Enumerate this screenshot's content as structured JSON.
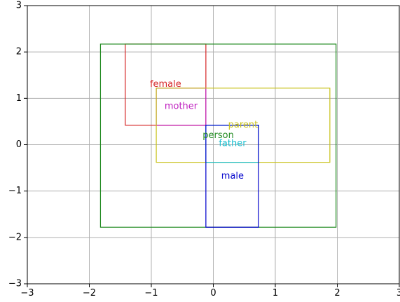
{
  "chart_data": {
    "type": "box-region-plot",
    "xlim": [
      -3,
      3
    ],
    "ylim": [
      -3,
      3
    ],
    "grid": true,
    "x_ticks": [
      {
        "value": -3,
        "label": "−3"
      },
      {
        "value": -2,
        "label": "−2"
      },
      {
        "value": -1,
        "label": "−1"
      },
      {
        "value": 0,
        "label": "0"
      },
      {
        "value": 1,
        "label": "1"
      },
      {
        "value": 2,
        "label": "2"
      },
      {
        "value": 3,
        "label": "3"
      }
    ],
    "y_ticks": [
      {
        "value": -3,
        "label": "−3"
      },
      {
        "value": -2,
        "label": "−2"
      },
      {
        "value": -1,
        "label": "−1"
      },
      {
        "value": 0,
        "label": "0"
      },
      {
        "value": 1,
        "label": "1"
      },
      {
        "value": 2,
        "label": "2"
      },
      {
        "value": 3,
        "label": "3"
      }
    ],
    "boxes": [
      {
        "name": "female",
        "color": "#d62728",
        "x_min": -1.42,
        "x_max": -0.12,
        "y_min": 0.42,
        "y_max": 2.17,
        "label_x": -0.77,
        "label_y": 1.3
      },
      {
        "name": "mother",
        "color": "#c020c0",
        "x_min": -0.92,
        "x_max": -0.12,
        "y_min": 0.42,
        "y_max": 1.22,
        "label_x": -0.52,
        "label_y": 0.82
      },
      {
        "name": "parent",
        "color": "#c9c21a",
        "x_min": -0.92,
        "x_max": 1.88,
        "y_min": -0.38,
        "y_max": 1.22,
        "label_x": 0.48,
        "label_y": 0.42
      },
      {
        "name": "person",
        "color": "#228b22",
        "x_min": -1.82,
        "x_max": 1.98,
        "y_min": -1.78,
        "y_max": 2.17,
        "label_x": 0.08,
        "label_y": 0.2
      },
      {
        "name": "father",
        "color": "#17becf",
        "x_min": -0.12,
        "x_max": 0.73,
        "y_min": -0.38,
        "y_max": 0.42,
        "label_x": 0.31,
        "label_y": 0.02
      },
      {
        "name": "male",
        "color": "#0000cc",
        "x_min": -0.12,
        "x_max": 0.73,
        "y_min": -1.78,
        "y_max": 0.42,
        "label_x": 0.31,
        "label_y": -0.68
      }
    ]
  }
}
